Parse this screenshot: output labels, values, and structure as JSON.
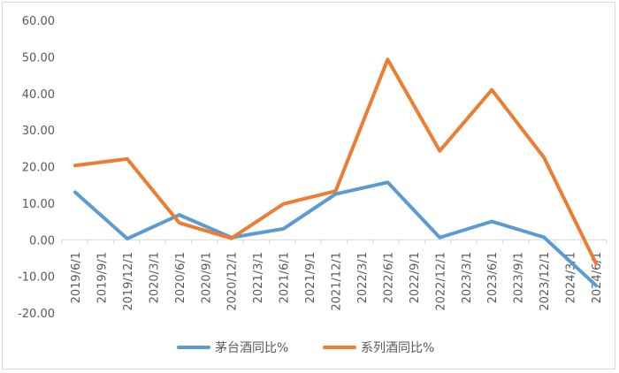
{
  "chart_data": {
    "type": "line",
    "categories": [
      "2019/6/1",
      "2019/9/1",
      "2019/12/1",
      "2020/3/1",
      "2020/6/1",
      "2020/9/1",
      "2020/12/1",
      "2021/3/1",
      "2021/6/1",
      "2021/9/1",
      "2021/12/1",
      "2022/3/1",
      "2022/6/1",
      "2022/9/1",
      "2022/12/1",
      "2023/3/1",
      "2023/6/1",
      "2023/9/1",
      "2023/12/1",
      "2024/3/1",
      "2024/6/1"
    ],
    "series_points": [
      {
        "name": "茅台酒同比%",
        "color": "#5b9bd5",
        "points": [
          [
            0,
            13.0
          ],
          [
            2,
            0.3
          ],
          [
            4,
            6.8
          ],
          [
            6,
            0.6
          ],
          [
            8,
            3.0
          ],
          [
            10,
            12.5
          ],
          [
            12,
            15.7
          ],
          [
            14,
            0.6
          ],
          [
            16,
            5.0
          ],
          [
            18,
            0.7
          ],
          [
            20,
            -12.5
          ]
        ]
      },
      {
        "name": "系列酒同比%",
        "color": "#ed7d31",
        "points": [
          [
            0,
            20.3
          ],
          [
            2,
            22.1
          ],
          [
            4,
            4.6
          ],
          [
            6,
            0.4
          ],
          [
            8,
            9.8
          ],
          [
            10,
            13.3
          ],
          [
            12,
            49.3
          ],
          [
            14,
            24.3
          ],
          [
            16,
            41.0
          ],
          [
            18,
            22.5
          ],
          [
            20,
            -6.5
          ]
        ]
      }
    ],
    "ylim": [
      -20,
      60
    ],
    "yticks": [
      "60.00",
      "50.00",
      "40.00",
      "30.00",
      "20.00",
      "10.00",
      "0.00",
      "-10.00",
      "-20.00"
    ],
    "grid": false,
    "legend_position": "bottom"
  }
}
